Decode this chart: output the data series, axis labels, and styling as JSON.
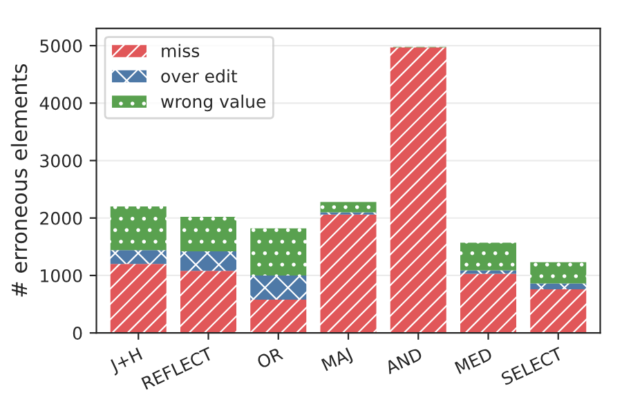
{
  "chart_data": {
    "type": "bar",
    "stacked": true,
    "ylabel": "# erroneous elements",
    "categories": [
      "J+H",
      "REFLECT",
      "OR",
      "MAJ",
      "AND",
      "MED",
      "SELECT"
    ],
    "series": [
      {
        "name": "miss",
        "color": "#e15759",
        "values": [
          1200,
          1080,
          580,
          2060,
          4970,
          1030,
          760
        ]
      },
      {
        "name": "over edit",
        "color": "#4e79a7",
        "values": [
          240,
          340,
          420,
          40,
          null,
          60,
          100
        ]
      },
      {
        "name": "wrong value",
        "color": "#59a14f",
        "values": [
          760,
          600,
          820,
          180,
          10,
          480,
          370
        ]
      }
    ],
    "ylim": [
      0,
      5300
    ],
    "yticks": [
      0,
      1000,
      2000,
      3000,
      4000,
      5000
    ],
    "grid": "y",
    "legend": "top left"
  }
}
